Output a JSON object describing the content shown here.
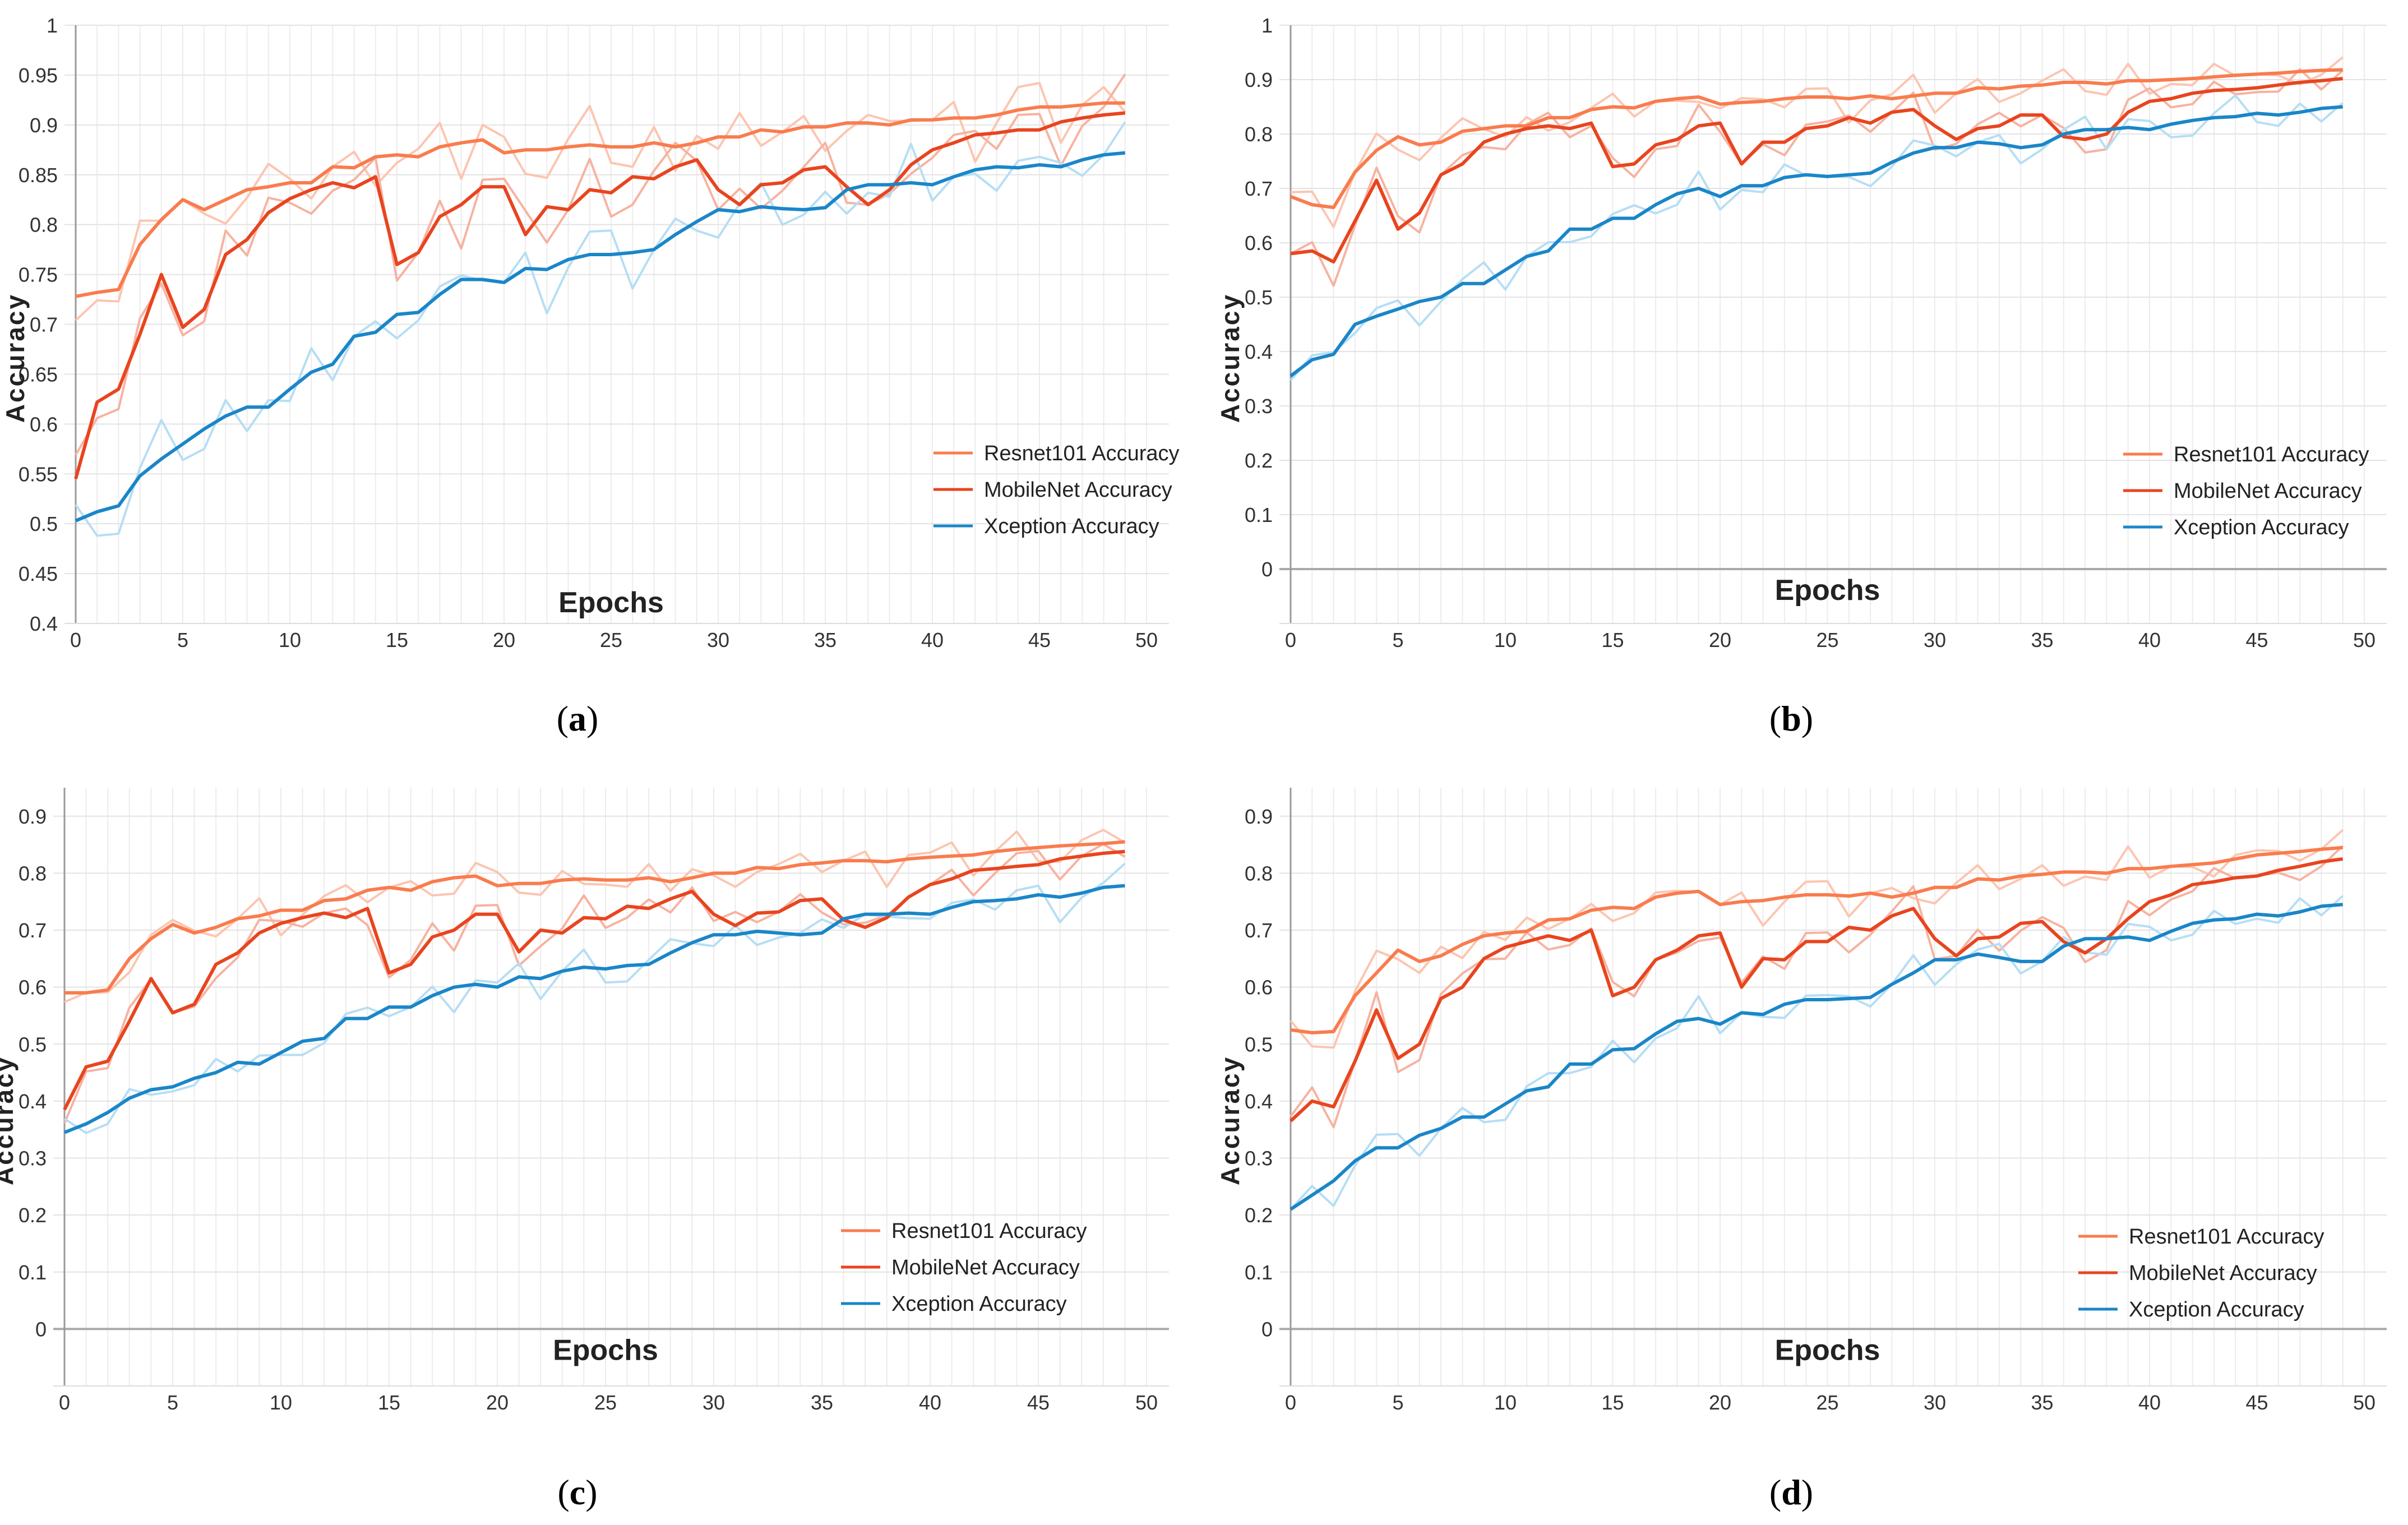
{
  "chart_data": [
    {
      "id": "a",
      "type": "line",
      "caption_label": "a",
      "xlabel": "Epochs",
      "ylabel": "Accuracy",
      "xlim": [
        0,
        50
      ],
      "ylim": [
        0.4,
        1.0
      ],
      "xticks": [
        "0",
        "5",
        "10",
        "15",
        "20",
        "25",
        "30",
        "35",
        "40",
        "45",
        "50"
      ],
      "yticks": [
        "0.4",
        "0.45",
        "0.5",
        "0.55",
        "0.6",
        "0.65",
        "0.7",
        "0.75",
        "0.8",
        "0.85",
        "0.9",
        "0.95",
        "1"
      ],
      "ytick_values": [
        0.4,
        0.45,
        0.5,
        0.55,
        0.6,
        0.65,
        0.7,
        0.75,
        0.8,
        0.85,
        0.9,
        0.95,
        1.0
      ],
      "legend_position": "right",
      "series": [
        {
          "name": "Resnet101 Accuracy",
          "color": "#f97c4e",
          "raw_color": "#fcc5b0",
          "values": [
            0.728,
            0.732,
            0.735,
            0.78,
            0.805,
            0.825,
            0.815,
            0.825,
            0.835,
            0.838,
            0.842,
            0.842,
            0.858,
            0.857,
            0.868,
            0.87,
            0.868,
            0.878,
            0.882,
            0.885,
            0.872,
            0.875,
            0.875,
            0.878,
            0.88,
            0.878,
            0.878,
            0.882,
            0.878,
            0.882,
            0.888,
            0.888,
            0.895,
            0.893,
            0.898,
            0.898,
            0.902,
            0.902,
            0.9,
            0.905,
            0.905,
            0.907,
            0.907,
            0.91,
            0.915,
            0.918,
            0.918,
            0.92,
            0.922,
            0.922
          ]
        },
        {
          "name": "MobileNet Accuracy",
          "color": "#e8451f",
          "raw_color": "#f7b2a0",
          "values": [
            0.545,
            0.622,
            0.635,
            0.69,
            0.75,
            0.697,
            0.715,
            0.77,
            0.785,
            0.812,
            0.826,
            0.835,
            0.842,
            0.837,
            0.848,
            0.76,
            0.772,
            0.808,
            0.82,
            0.838,
            0.838,
            0.79,
            0.818,
            0.815,
            0.835,
            0.832,
            0.848,
            0.846,
            0.858,
            0.865,
            0.835,
            0.82,
            0.84,
            0.842,
            0.855,
            0.858,
            0.838,
            0.82,
            0.835,
            0.86,
            0.875,
            0.882,
            0.89,
            0.892,
            0.895,
            0.895,
            0.903,
            0.907,
            0.91,
            0.912
          ]
        },
        {
          "name": "Xception Accuracy",
          "color": "#1a86c8",
          "raw_color": "#b6def4",
          "values": [
            0.503,
            0.512,
            0.518,
            0.548,
            0.565,
            0.58,
            0.595,
            0.608,
            0.617,
            0.617,
            0.635,
            0.652,
            0.66,
            0.688,
            0.692,
            0.71,
            0.712,
            0.73,
            0.745,
            0.745,
            0.742,
            0.756,
            0.755,
            0.765,
            0.77,
            0.77,
            0.772,
            0.775,
            0.79,
            0.803,
            0.815,
            0.813,
            0.818,
            0.816,
            0.815,
            0.817,
            0.835,
            0.84,
            0.84,
            0.842,
            0.84,
            0.848,
            0.855,
            0.858,
            0.857,
            0.86,
            0.858,
            0.865,
            0.87,
            0.872
          ]
        }
      ]
    },
    {
      "id": "b",
      "type": "line",
      "caption_label": "b",
      "xlabel": "Epochs",
      "ylabel": "Accuracy",
      "xlim": [
        0,
        50
      ],
      "ylim": [
        -0.1,
        1.0
      ],
      "xticks": [
        "0",
        "5",
        "10",
        "15",
        "20",
        "25",
        "30",
        "35",
        "40",
        "45",
        "50"
      ],
      "yticks": [
        "0",
        "0.1",
        "0.2",
        "0.3",
        "0.4",
        "0.5",
        "0.6",
        "0.7",
        "0.8",
        "0.9",
        "1"
      ],
      "ytick_values": [
        0,
        0.1,
        0.2,
        0.3,
        0.4,
        0.5,
        0.6,
        0.7,
        0.8,
        0.9,
        1.0
      ],
      "legend_position": "right",
      "series": [
        {
          "name": "Resnet101 Accuracy",
          "color": "#f97c4e",
          "raw_color": "#fcc5b0",
          "values": [
            0.685,
            0.67,
            0.665,
            0.73,
            0.77,
            0.795,
            0.78,
            0.785,
            0.805,
            0.81,
            0.815,
            0.815,
            0.83,
            0.83,
            0.845,
            0.85,
            0.848,
            0.86,
            0.865,
            0.868,
            0.855,
            0.858,
            0.86,
            0.865,
            0.868,
            0.868,
            0.865,
            0.87,
            0.865,
            0.87,
            0.875,
            0.875,
            0.885,
            0.883,
            0.888,
            0.89,
            0.895,
            0.895,
            0.892,
            0.898,
            0.898,
            0.9,
            0.902,
            0.905,
            0.908,
            0.91,
            0.912,
            0.915,
            0.917,
            0.918
          ]
        },
        {
          "name": "MobileNet Accuracy",
          "color": "#e8451f",
          "raw_color": "#f7b2a0",
          "values": [
            0.58,
            0.585,
            0.565,
            0.64,
            0.715,
            0.625,
            0.655,
            0.725,
            0.745,
            0.785,
            0.8,
            0.81,
            0.815,
            0.81,
            0.82,
            0.74,
            0.745,
            0.78,
            0.79,
            0.815,
            0.82,
            0.745,
            0.785,
            0.785,
            0.81,
            0.815,
            0.83,
            0.82,
            0.84,
            0.845,
            0.815,
            0.79,
            0.81,
            0.815,
            0.835,
            0.835,
            0.795,
            0.79,
            0.8,
            0.84,
            0.86,
            0.865,
            0.875,
            0.88,
            0.882,
            0.885,
            0.89,
            0.895,
            0.898,
            0.902
          ]
        },
        {
          "name": "Xception Accuracy",
          "color": "#1a86c8",
          "raw_color": "#b6def4",
          "values": [
            0.355,
            0.385,
            0.395,
            0.45,
            0.465,
            0.478,
            0.492,
            0.5,
            0.525,
            0.525,
            0.55,
            0.575,
            0.585,
            0.625,
            0.625,
            0.645,
            0.645,
            0.67,
            0.69,
            0.7,
            0.685,
            0.705,
            0.705,
            0.72,
            0.725,
            0.722,
            0.725,
            0.728,
            0.748,
            0.765,
            0.775,
            0.775,
            0.785,
            0.782,
            0.775,
            0.78,
            0.8,
            0.808,
            0.808,
            0.812,
            0.808,
            0.818,
            0.825,
            0.83,
            0.832,
            0.838,
            0.835,
            0.84,
            0.847,
            0.85
          ]
        }
      ]
    },
    {
      "id": "c",
      "type": "line",
      "caption_label": "c",
      "xlabel": "Epochs",
      "ylabel": "Accuracy",
      "xlim": [
        0,
        50
      ],
      "ylim": [
        -0.1,
        0.95
      ],
      "xticks": [
        "0",
        "5",
        "10",
        "15",
        "20",
        "25",
        "30",
        "35",
        "40",
        "45",
        "50"
      ],
      "yticks": [
        "0",
        "0.1",
        "0.2",
        "0.3",
        "0.4",
        "0.5",
        "0.6",
        "0.7",
        "0.8",
        "0.9"
      ],
      "ytick_values": [
        0,
        0.1,
        0.2,
        0.3,
        0.4,
        0.5,
        0.6,
        0.7,
        0.8,
        0.9
      ],
      "legend_position": "bottom-right",
      "series": [
        {
          "name": "Resnet101 Accuracy",
          "color": "#f97c4e",
          "raw_color": "#fcc5b0",
          "values": [
            0.59,
            0.59,
            0.595,
            0.65,
            0.685,
            0.71,
            0.695,
            0.705,
            0.72,
            0.725,
            0.735,
            0.735,
            0.752,
            0.755,
            0.77,
            0.775,
            0.77,
            0.785,
            0.792,
            0.795,
            0.778,
            0.782,
            0.782,
            0.788,
            0.79,
            0.788,
            0.788,
            0.792,
            0.785,
            0.792,
            0.8,
            0.8,
            0.81,
            0.808,
            0.815,
            0.818,
            0.822,
            0.822,
            0.82,
            0.825,
            0.828,
            0.83,
            0.832,
            0.838,
            0.842,
            0.845,
            0.848,
            0.85,
            0.852,
            0.855
          ]
        },
        {
          "name": "MobileNet Accuracy",
          "color": "#e8451f",
          "raw_color": "#f7b2a0",
          "values": [
            0.385,
            0.46,
            0.47,
            0.54,
            0.615,
            0.555,
            0.57,
            0.64,
            0.66,
            0.695,
            0.712,
            0.722,
            0.73,
            0.722,
            0.738,
            0.625,
            0.64,
            0.688,
            0.7,
            0.728,
            0.728,
            0.662,
            0.7,
            0.695,
            0.722,
            0.72,
            0.742,
            0.738,
            0.755,
            0.768,
            0.728,
            0.708,
            0.73,
            0.732,
            0.752,
            0.755,
            0.718,
            0.705,
            0.722,
            0.758,
            0.78,
            0.79,
            0.805,
            0.808,
            0.812,
            0.815,
            0.825,
            0.83,
            0.835,
            0.838
          ]
        },
        {
          "name": "Xception Accuracy",
          "color": "#1a86c8",
          "raw_color": "#b6def4",
          "values": [
            0.345,
            0.36,
            0.38,
            0.405,
            0.42,
            0.425,
            0.44,
            0.45,
            0.468,
            0.465,
            0.485,
            0.505,
            0.51,
            0.545,
            0.545,
            0.565,
            0.565,
            0.585,
            0.6,
            0.605,
            0.6,
            0.618,
            0.615,
            0.628,
            0.635,
            0.632,
            0.638,
            0.64,
            0.66,
            0.678,
            0.692,
            0.692,
            0.698,
            0.695,
            0.692,
            0.695,
            0.72,
            0.728,
            0.728,
            0.73,
            0.728,
            0.74,
            0.75,
            0.752,
            0.755,
            0.762,
            0.758,
            0.765,
            0.775,
            0.778
          ]
        }
      ]
    },
    {
      "id": "d",
      "type": "line",
      "caption_label": "d",
      "xlabel": "Epochs",
      "ylabel": "Accuracy",
      "xlim": [
        0,
        50
      ],
      "ylim": [
        -0.1,
        0.95
      ],
      "xticks": [
        "0",
        "5",
        "10",
        "15",
        "20",
        "25",
        "30",
        "35",
        "40",
        "45",
        "50"
      ],
      "yticks": [
        "0",
        "0.1",
        "0.2",
        "0.3",
        "0.4",
        "0.5",
        "0.6",
        "0.7",
        "0.8",
        "0.9"
      ],
      "ytick_values": [
        0,
        0.1,
        0.2,
        0.3,
        0.4,
        0.5,
        0.6,
        0.7,
        0.8,
        0.9
      ],
      "legend_position": "bottom-right",
      "series": [
        {
          "name": "Resnet101 Accuracy",
          "color": "#f97c4e",
          "raw_color": "#fcc5b0",
          "values": [
            0.525,
            0.52,
            0.522,
            0.585,
            0.625,
            0.665,
            0.645,
            0.655,
            0.675,
            0.69,
            0.695,
            0.698,
            0.718,
            0.72,
            0.735,
            0.74,
            0.738,
            0.758,
            0.765,
            0.768,
            0.745,
            0.75,
            0.752,
            0.758,
            0.762,
            0.762,
            0.76,
            0.765,
            0.758,
            0.765,
            0.775,
            0.775,
            0.79,
            0.788,
            0.795,
            0.798,
            0.802,
            0.802,
            0.8,
            0.808,
            0.808,
            0.812,
            0.815,
            0.818,
            0.825,
            0.832,
            0.835,
            0.838,
            0.842,
            0.845
          ]
        },
        {
          "name": "MobileNet Accuracy",
          "color": "#e8451f",
          "raw_color": "#f7b2a0",
          "values": [
            0.365,
            0.4,
            0.39,
            0.47,
            0.56,
            0.475,
            0.5,
            0.58,
            0.6,
            0.65,
            0.67,
            0.68,
            0.69,
            0.682,
            0.7,
            0.585,
            0.6,
            0.648,
            0.665,
            0.69,
            0.695,
            0.6,
            0.65,
            0.648,
            0.68,
            0.68,
            0.705,
            0.7,
            0.725,
            0.738,
            0.685,
            0.655,
            0.685,
            0.688,
            0.712,
            0.715,
            0.68,
            0.66,
            0.685,
            0.72,
            0.75,
            0.762,
            0.78,
            0.785,
            0.792,
            0.795,
            0.805,
            0.812,
            0.82,
            0.825
          ]
        },
        {
          "name": "Xception Accuracy",
          "color": "#1a86c8",
          "raw_color": "#b6def4",
          "values": [
            0.21,
            0.235,
            0.26,
            0.295,
            0.318,
            0.318,
            0.34,
            0.352,
            0.372,
            0.372,
            0.395,
            0.418,
            0.425,
            0.465,
            0.465,
            0.49,
            0.492,
            0.518,
            0.54,
            0.545,
            0.535,
            0.555,
            0.552,
            0.57,
            0.578,
            0.578,
            0.58,
            0.582,
            0.605,
            0.625,
            0.648,
            0.648,
            0.658,
            0.652,
            0.645,
            0.645,
            0.672,
            0.685,
            0.685,
            0.688,
            0.682,
            0.698,
            0.712,
            0.718,
            0.72,
            0.728,
            0.725,
            0.732,
            0.742,
            0.745
          ]
        }
      ]
    }
  ]
}
